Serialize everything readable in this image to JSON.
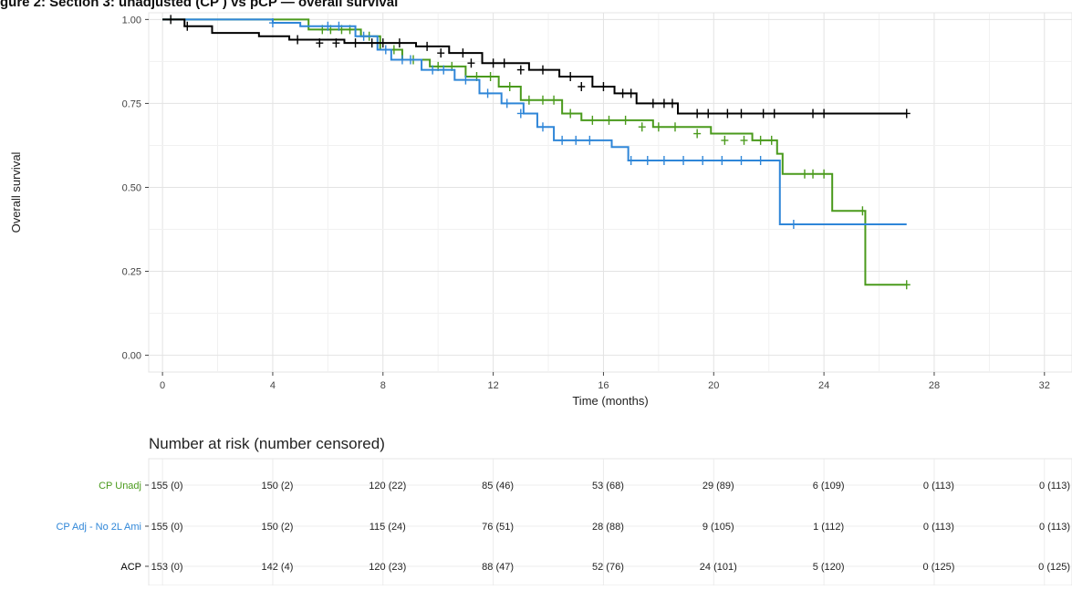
{
  "figure_title_fragment": "gure 2: Section 3: unadjusted (CP ) vs pCP — overall survival",
  "chart_data": {
    "type": "line",
    "xlabel": "Time (months)",
    "ylabel": "Overall survival",
    "xlim": [
      -0.5,
      33
    ],
    "ylim": [
      -0.05,
      1.02
    ],
    "xticks": [
      0,
      4,
      8,
      12,
      16,
      20,
      24,
      28,
      32
    ],
    "yticks": [
      0.0,
      0.25,
      0.5,
      0.75,
      1.0
    ],
    "ytick_labels": [
      "0.00",
      "0.25",
      "0.50",
      "0.75",
      "1.00"
    ],
    "grid": true,
    "colors": {
      "cp_unadj": "#4a9a1c",
      "cp_adj": "#2f86d8",
      "acp": "#000000"
    },
    "series": [
      {
        "key": "cp_unadj",
        "x": [
          0,
          5.3,
          7.2,
          7.9,
          8.7,
          9.7,
          11.0,
          12.2,
          13.0,
          14.5,
          15.2,
          17.8,
          19.9,
          21.4,
          22.3,
          22.5,
          24.3,
          25.5,
          27.0
        ],
        "y": [
          1.0,
          0.97,
          0.95,
          0.91,
          0.88,
          0.86,
          0.83,
          0.8,
          0.76,
          0.72,
          0.7,
          0.68,
          0.66,
          0.64,
          0.6,
          0.54,
          0.43,
          0.21,
          0.21
        ],
        "censor_x": [
          5.8,
          6.1,
          6.5,
          6.8,
          7.5,
          8.4,
          9.1,
          10.0,
          10.5,
          11.4,
          11.9,
          12.6,
          13.3,
          13.8,
          14.2,
          14.8,
          15.6,
          16.2,
          16.8,
          17.4,
          18.0,
          18.6,
          19.4,
          20.4,
          21.1,
          21.7,
          22.1,
          23.3,
          23.6,
          24.0,
          25.4,
          27.0
        ],
        "censor_y": [
          0.97,
          0.97,
          0.97,
          0.97,
          0.95,
          0.91,
          0.88,
          0.86,
          0.86,
          0.83,
          0.83,
          0.8,
          0.76,
          0.76,
          0.76,
          0.72,
          0.7,
          0.7,
          0.7,
          0.68,
          0.68,
          0.68,
          0.66,
          0.64,
          0.64,
          0.64,
          0.64,
          0.54,
          0.54,
          0.54,
          0.43,
          0.21
        ]
      },
      {
        "key": "cp_adj",
        "x": [
          0,
          4.0,
          5.0,
          7.0,
          7.8,
          8.3,
          9.4,
          10.6,
          11.5,
          12.3,
          13.1,
          13.6,
          14.2,
          16.3,
          16.9,
          22.3,
          22.4,
          27.0
        ],
        "y": [
          1.0,
          0.99,
          0.98,
          0.95,
          0.91,
          0.88,
          0.85,
          0.82,
          0.78,
          0.75,
          0.72,
          0.68,
          0.64,
          0.62,
          0.58,
          0.58,
          0.39,
          0.39
        ],
        "censor_x": [
          4.0,
          6.0,
          6.4,
          7.3,
          8.1,
          8.7,
          9.0,
          9.8,
          10.2,
          11.0,
          11.8,
          12.5,
          13.0,
          13.8,
          14.5,
          15.0,
          15.5,
          17.0,
          17.6,
          18.2,
          18.9,
          19.6,
          20.3,
          21.0,
          21.7,
          22.9
        ],
        "censor_y": [
          0.99,
          0.98,
          0.98,
          0.95,
          0.91,
          0.88,
          0.88,
          0.85,
          0.85,
          0.82,
          0.78,
          0.75,
          0.72,
          0.68,
          0.64,
          0.64,
          0.64,
          0.58,
          0.58,
          0.58,
          0.58,
          0.58,
          0.58,
          0.58,
          0.58,
          0.39
        ]
      },
      {
        "key": "acp",
        "x": [
          0,
          0.8,
          1.8,
          3.5,
          4.6,
          6.6,
          9.2,
          10.4,
          11.6,
          13.3,
          14.4,
          15.6,
          16.4,
          17.2,
          18.7,
          27.0
        ],
        "y": [
          1.0,
          0.98,
          0.96,
          0.95,
          0.94,
          0.93,
          0.92,
          0.9,
          0.87,
          0.85,
          0.83,
          0.8,
          0.78,
          0.75,
          0.72,
          0.72
        ],
        "censor_x": [
          0.3,
          0.9,
          4.9,
          5.7,
          6.3,
          7.0,
          7.6,
          8.0,
          8.6,
          9.6,
          10.1,
          10.9,
          11.2,
          12.0,
          12.4,
          13.0,
          13.8,
          14.8,
          15.2,
          16.0,
          16.7,
          17.0,
          17.8,
          18.2,
          18.5,
          19.4,
          19.8,
          20.5,
          21.0,
          21.8,
          22.2,
          23.6,
          24.0,
          27.0
        ],
        "censor_y": [
          1.0,
          0.98,
          0.94,
          0.93,
          0.93,
          0.93,
          0.93,
          0.93,
          0.93,
          0.92,
          0.9,
          0.9,
          0.87,
          0.87,
          0.87,
          0.85,
          0.85,
          0.83,
          0.8,
          0.8,
          0.78,
          0.78,
          0.75,
          0.75,
          0.75,
          0.72,
          0.72,
          0.72,
          0.72,
          0.72,
          0.72,
          0.72,
          0.72,
          0.72
        ]
      }
    ],
    "risk_table": {
      "title": "Number at risk (number censored)",
      "times": [
        0,
        4,
        8,
        12,
        16,
        20,
        24,
        28,
        32
      ],
      "rows": [
        {
          "label": "CP Unadj",
          "color_key": "cp_unadj",
          "values": [
            "155 (0)",
            "150 (2)",
            "120 (22)",
            "85 (46)",
            "53 (68)",
            "29 (89)",
            "6 (109)",
            "0 (113)",
            "0 (113)"
          ]
        },
        {
          "label": "CP Adj - No 2L Ami",
          "color_key": "cp_adj",
          "values": [
            "155 (0)",
            "150 (2)",
            "115 (24)",
            "76 (51)",
            "28 (88)",
            "9 (105)",
            "1 (112)",
            "0 (113)",
            "0 (113)"
          ]
        },
        {
          "label": "ACP",
          "color_key": "acp",
          "values": [
            "153 (0)",
            "142 (4)",
            "120 (23)",
            "88 (47)",
            "52 (76)",
            "24 (101)",
            "5 (120)",
            "0 (125)",
            "0 (125)"
          ]
        }
      ]
    }
  }
}
